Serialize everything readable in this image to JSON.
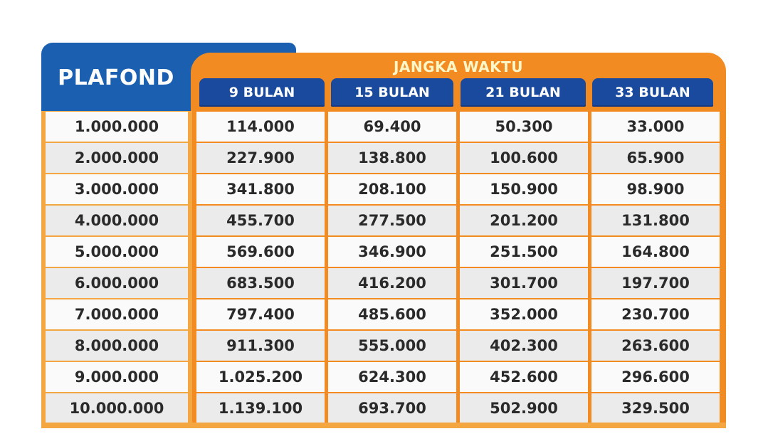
{
  "header": {
    "plafond": "PLAFOND",
    "jangka_waktu": "JANGKA WAKTU",
    "months": [
      "9 BULAN",
      "15 BULAN",
      "21 BULAN",
      "33 BULAN"
    ]
  },
  "rows": [
    {
      "plafond": "1.000.000",
      "m9": "114.000",
      "m15": "69.400",
      "m21": "50.300",
      "m33": "33.000"
    },
    {
      "plafond": "2.000.000",
      "m9": "227.900",
      "m15": "138.800",
      "m21": "100.600",
      "m33": "65.900"
    },
    {
      "plafond": "3.000.000",
      "m9": "341.800",
      "m15": "208.100",
      "m21": "150.900",
      "m33": "98.900"
    },
    {
      "plafond": "4.000.000",
      "m9": "455.700",
      "m15": "277.500",
      "m21": "201.200",
      "m33": "131.800"
    },
    {
      "plafond": "5.000.000",
      "m9": "569.600",
      "m15": "346.900",
      "m21": "251.500",
      "m33": "164.800"
    },
    {
      "plafond": "6.000.000",
      "m9": "683.500",
      "m15": "416.200",
      "m21": "301.700",
      "m33": "197.700"
    },
    {
      "plafond": "7.000.000",
      "m9": "797.400",
      "m15": "485.600",
      "m21": "352.000",
      "m33": "230.700"
    },
    {
      "plafond": "8.000.000",
      "m9": "911.300",
      "m15": "555.000",
      "m21": "402.300",
      "m33": "263.600"
    },
    {
      "plafond": "9.000.000",
      "m9": "1.025.200",
      "m15": "624.300",
      "m21": "452.600",
      "m33": "296.600"
    },
    {
      "plafond": "10.000.000",
      "m9": "1.139.100",
      "m15": "693.700",
      "m21": "502.900",
      "m33": "329.500"
    }
  ],
  "colors": {
    "blue": "#1a5fb0",
    "navy": "#1a4a9e",
    "orange": "#f28c22",
    "light_orange": "#f4a640",
    "row_light": "#fafafa",
    "row_dark": "#ebebeb"
  }
}
